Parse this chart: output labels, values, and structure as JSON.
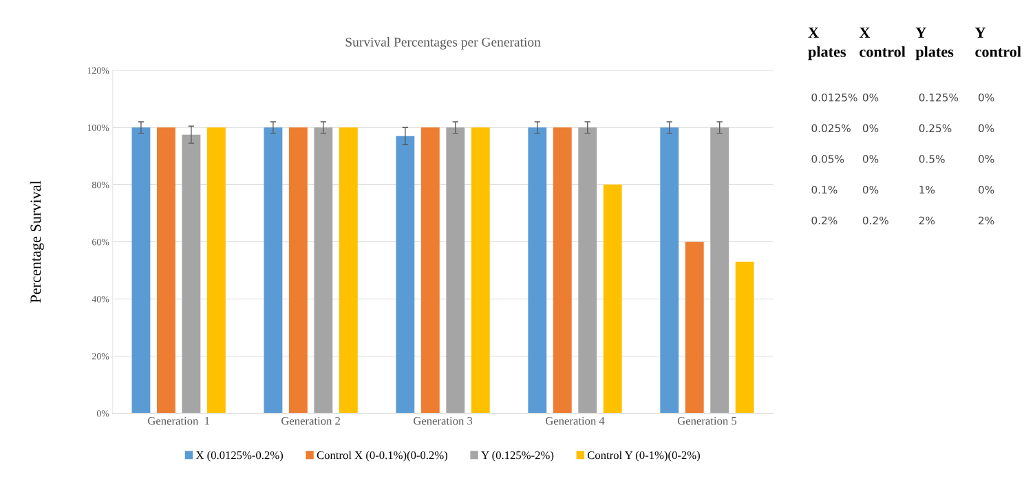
{
  "chart_data": {
    "type": "bar",
    "title": "Survival Percentages per Generation",
    "ylabel": "Percentage Survival",
    "categories": [
      "Generation  1",
      "Generation 2",
      "Generation 3",
      "Generation 4",
      "Generation 5"
    ],
    "series": [
      {
        "name": "X (0.0125%-0.2%)",
        "color": "#5b9bd5",
        "values": [
          100,
          100,
          97,
          100,
          100
        ],
        "errors": [
          2,
          2,
          3,
          2,
          2
        ]
      },
      {
        "name": "Control X (0-0.1%)(0-0.2%)",
        "color": "#ed7d31",
        "values": [
          100,
          100,
          100,
          100,
          60
        ]
      },
      {
        "name": "Y (0.125%-2%)",
        "color": "#a5a5a5",
        "values": [
          97.5,
          100,
          100,
          100,
          100
        ],
        "errors": [
          3,
          2,
          2,
          2,
          2
        ]
      },
      {
        "name": "Control Y (0-1%)(0-2%)",
        "color": "#ffc000",
        "values": [
          100,
          100,
          100,
          80,
          53
        ]
      }
    ],
    "ylim": [
      0,
      120
    ],
    "yticks": [
      {
        "value": 0,
        "label": "0%"
      },
      {
        "value": 20,
        "label": "20%"
      },
      {
        "value": 40,
        "label": "40%"
      },
      {
        "value": 60,
        "label": "60%"
      },
      {
        "value": 80,
        "label": "80%"
      },
      {
        "value": 100,
        "label": "100%"
      },
      {
        "value": 120,
        "label": "120%"
      }
    ],
    "grid": "y",
    "legend": "bottom",
    "annotations": [
      "X\nplates",
      "X\ncontrol",
      "Y\nplates",
      "Y\ncontrol",
      "0.0125%",
      "0%",
      "0.125%",
      "0%",
      "0.025%",
      "0%",
      "0.25%",
      "0%",
      "0.05%",
      "0%",
      "0.5%",
      "0%",
      "0.1%",
      "0%",
      "1%",
      "0%",
      "0.2%",
      "0.2%",
      "2%",
      "2%"
    ]
  }
}
